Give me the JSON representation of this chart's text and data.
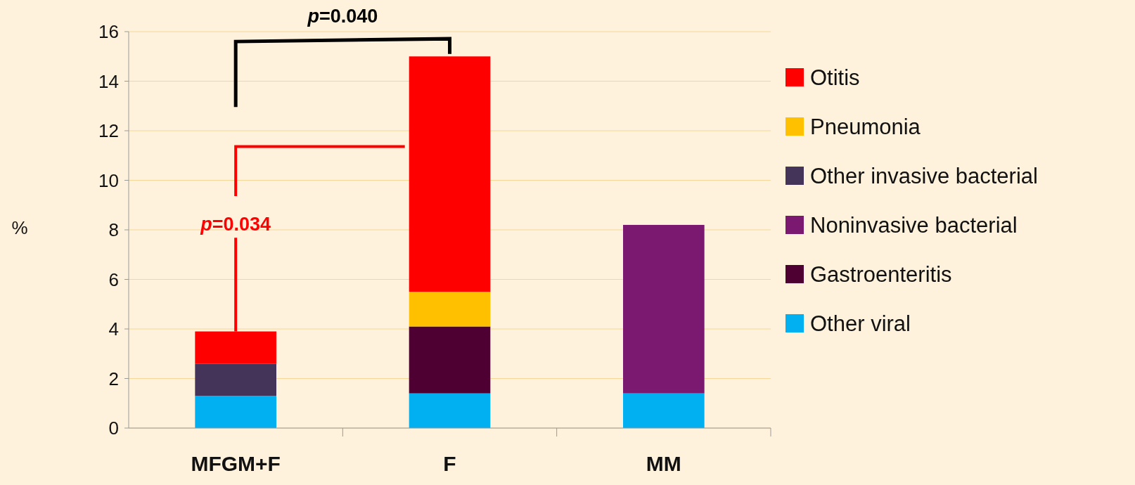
{
  "chart_data": {
    "type": "bar",
    "stacked": true,
    "ylabel": "%",
    "categories": [
      "MFGM+F",
      "F",
      "MM"
    ],
    "series": [
      {
        "name": "Other viral",
        "color": "#00b0f0",
        "values": [
          1.3,
          1.4,
          1.4
        ]
      },
      {
        "name": "Gastroenteritis",
        "color": "#4e0033",
        "values": [
          0,
          2.7,
          0
        ]
      },
      {
        "name": "Noninvasive bacterial",
        "color": "#7b1870",
        "values": [
          0,
          0,
          6.8
        ]
      },
      {
        "name": "Other invasive bacterial",
        "color": "#44345a",
        "values": [
          1.3,
          0,
          0
        ]
      },
      {
        "name": "Pneumonia",
        "color": "#ffc000",
        "values": [
          0,
          1.4,
          0
        ]
      },
      {
        "name": "Otitis",
        "color": "#ff0000",
        "values": [
          1.3,
          9.5,
          0
        ]
      }
    ],
    "ylim": [
      0,
      16
    ],
    "yticks": [
      0,
      2,
      4,
      6,
      8,
      10,
      12,
      14,
      16
    ],
    "grid": "y",
    "legend": "right",
    "annotations": [
      "p=0.040",
      {
        "text": "p=0.034",
        "y": 3.9
      }
    ]
  }
}
